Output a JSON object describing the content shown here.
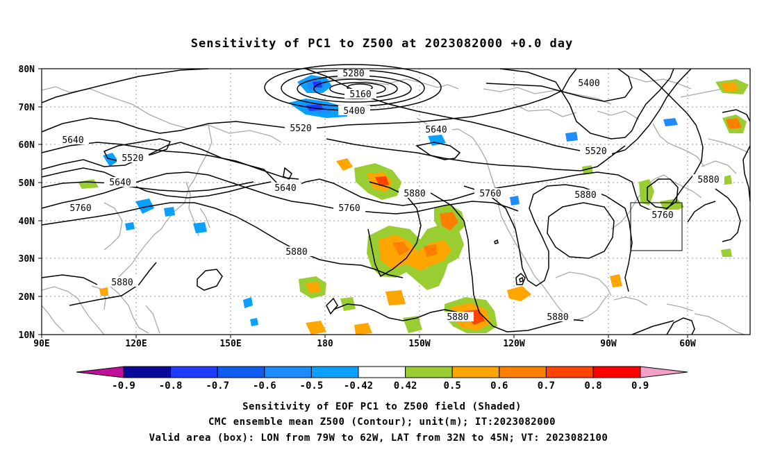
{
  "title": "Sensitivity of PC1 to Z500 at 2023082000 +0.0 day",
  "lat_labels": [
    "80N",
    "70N",
    "60N",
    "50N",
    "40N",
    "30N",
    "20N",
    "10N"
  ],
  "lon_labels": [
    "90E",
    "120E",
    "150E",
    "180",
    "150W",
    "120W",
    "90W",
    "60W"
  ],
  "contour_labels": [
    "5280",
    "5160",
    "5400",
    "5520",
    "5640",
    "5400",
    "5520",
    "5640",
    "5520",
    "5640",
    "5640",
    "5760",
    "5760",
    "5880",
    "5760",
    "5880",
    "5880",
    "5880",
    "5760",
    "5880",
    "5880",
    "5880"
  ],
  "colorbar": {
    "labels": [
      "-0.9",
      "-0.8",
      "-0.7",
      "-0.6",
      "-0.5",
      "-0.42",
      "0.42",
      "0.5",
      "0.6",
      "0.7",
      "0.8",
      "0.9"
    ],
    "colors": [
      "#0a0a9a",
      "#1e3cff",
      "#0f5cf0",
      "#1e8cff",
      "#0aa0ff",
      "#ffffff",
      "#9acd32",
      "#ffa500",
      "#ff7f00",
      "#ff4500",
      "#ff0000"
    ],
    "arrow_left": "#c0109a",
    "arrow_right": "#f3a0c8"
  },
  "captions": [
    "Sensitivity of EOF PC1 to Z500 field (Shaded)",
    "CMC ensemble mean Z500 (Contour); unit(m); IT:2023082000",
    "Valid area (box): LON from 79W to 62W, LAT from 32N to 45N; VT: 2023082100"
  ]
}
